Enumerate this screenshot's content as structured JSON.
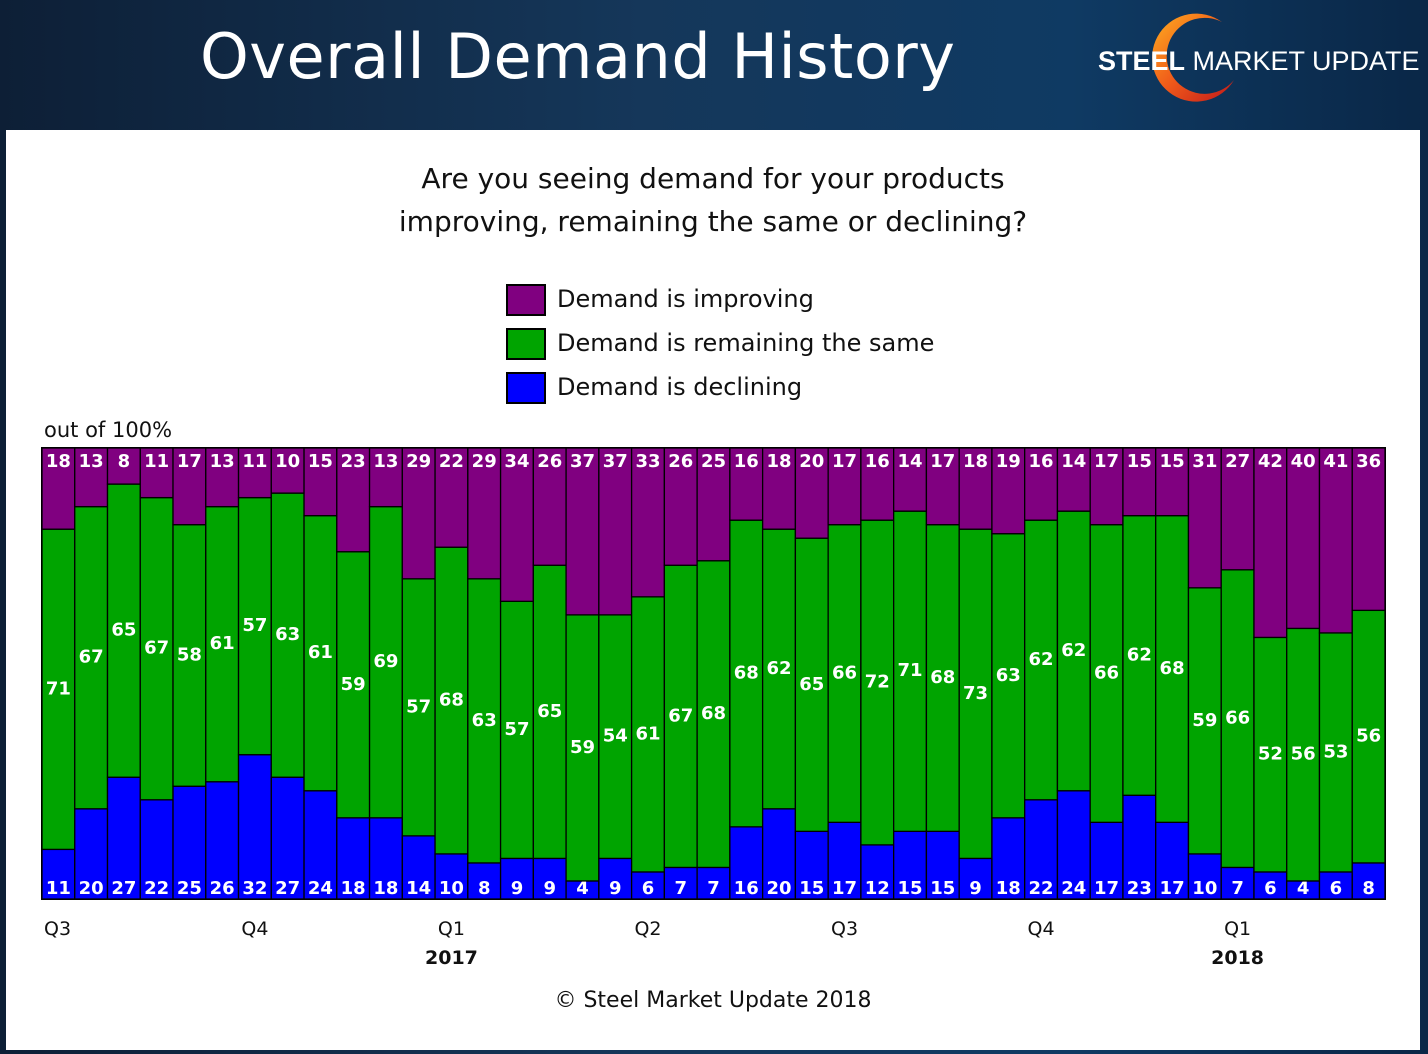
{
  "header": {
    "title": "Overall Demand History",
    "logo_bold": "STEEL",
    "logo_rest": " MARKET UPDATE"
  },
  "chart_data": {
    "type": "bar",
    "stacked": true,
    "title_line1": "Are you seeing demand for your products",
    "title_line2": "improving, remaining the same or declining?",
    "ylabel": "out of 100%",
    "ylim": [
      0,
      100
    ],
    "legend_placement": "top-center",
    "series": [
      {
        "name": "Demand is improving",
        "color": "#800080",
        "values": [
          18,
          13,
          8,
          11,
          17,
          13,
          11,
          10,
          15,
          23,
          13,
          29,
          22,
          29,
          34,
          26,
          37,
          37,
          33,
          26,
          25,
          16,
          18,
          20,
          17,
          16,
          14,
          17,
          18,
          19,
          16,
          14,
          17,
          15,
          15,
          31,
          27,
          42,
          40,
          41,
          36
        ]
      },
      {
        "name": "Demand is remaining the same",
        "color": "#00a400",
        "values": [
          71,
          67,
          65,
          67,
          58,
          61,
          57,
          63,
          61,
          59,
          69,
          57,
          68,
          63,
          57,
          65,
          59,
          54,
          61,
          67,
          68,
          68,
          62,
          65,
          66,
          72,
          71,
          68,
          73,
          63,
          62,
          62,
          66,
          62,
          68,
          59,
          66,
          52,
          56,
          53,
          56
        ]
      },
      {
        "name": "Demand is declining",
        "color": "#0000ff",
        "values": [
          11,
          20,
          27,
          22,
          25,
          26,
          32,
          27,
          24,
          18,
          18,
          14,
          10,
          8,
          9,
          9,
          4,
          9,
          6,
          7,
          7,
          16,
          20,
          15,
          17,
          12,
          15,
          15,
          9,
          18,
          22,
          24,
          17,
          23,
          17,
          10,
          7,
          6,
          4,
          6,
          8
        ]
      }
    ],
    "quarter_labels": [
      {
        "index": 0,
        "label": "Q3"
      },
      {
        "index": 6,
        "label": "Q4"
      },
      {
        "index": 12,
        "label": "Q1"
      },
      {
        "index": 18,
        "label": "Q2"
      },
      {
        "index": 24,
        "label": "Q3"
      },
      {
        "index": 30,
        "label": "Q4"
      },
      {
        "index": 36,
        "label": "Q1"
      }
    ],
    "year_labels": [
      {
        "index": 12,
        "label": "2017"
      },
      {
        "index": 36,
        "label": "2018"
      }
    ]
  },
  "footer": {
    "copyright": "© Steel Market Update 2018"
  }
}
